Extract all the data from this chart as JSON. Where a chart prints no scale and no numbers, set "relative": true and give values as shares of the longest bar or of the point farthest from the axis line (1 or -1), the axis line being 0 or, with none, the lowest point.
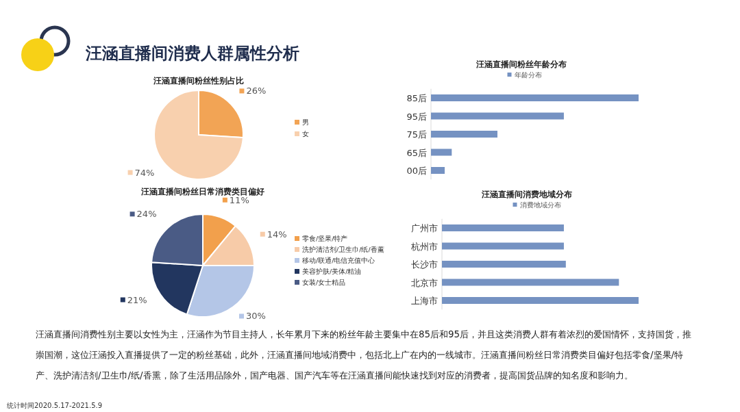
{
  "chart_data": [
    {
      "type": "other",
      "title": "汪涵直播间消费人群属性分析",
      "annotations": [
        "汪涵直播间消费性别主要以女性为主，汪涵作为节目主持人，长年累月下来的粉丝年龄主要集中在85后和95后，并且这类消费人群有着浓烈的爱国情怀，支持国货，推崇国潮，这位汪涵投入直播提供了一定的粉丝基础，此外，汪涵直播间地域消费中，包括北上广在内的一线城市。汪涵直播间粉丝日常消费类目偏好包括零食/坚果/特产、洗护清洁剂/卫生巾/纸/香熏，除了生活用品除外，国产电器、国产汽车等在汪涵直播间能快速找到对应的消费者，提高国货品牌的知名度和影响力。",
        "统计时间2020.5.17-2021.5.9"
      ]
    },
    {
      "type": "pie",
      "title": "汪涵直播间粉丝性别占比",
      "categories": [
        "男",
        "女"
      ],
      "values": [
        26,
        74
      ],
      "value_labels": [
        "26%",
        "74%"
      ],
      "colors": [
        "#f2a455",
        "#f8d0ae"
      ],
      "legend": "right"
    },
    {
      "type": "pie",
      "title": "汪涵直播间粉丝日常消费类目偏好",
      "categories": [
        "零食/坚果/特产",
        "洗护清洁剂/卫生巾/纸/香薰",
        "移动/联通/电信充值中心",
        "美容护肤/美体/精油",
        "女装/女士精品"
      ],
      "values": [
        11,
        14,
        30,
        21,
        24
      ],
      "value_labels": [
        "11%",
        "14%",
        "30%",
        "21%",
        "24%"
      ],
      "colors": [
        "#f2a04c",
        "#f7cba8",
        "#b4c6e7",
        "#22365f",
        "#4a5b85"
      ],
      "legend": "right"
    },
    {
      "type": "bar",
      "orientation": "horizontal",
      "relative": true,
      "title": "汪涵直播间粉丝年龄分布",
      "legend": "top",
      "categories": [
        "85后",
        "95后",
        "75后",
        "65后",
        "00后"
      ],
      "series": [
        {
          "name": "年龄分布",
          "color": "#7592c2",
          "values": [
            1,
            0.64,
            0.32,
            0.1,
            0.066
          ]
        }
      ]
    },
    {
      "type": "bar",
      "orientation": "horizontal",
      "relative": true,
      "title": "汪涵直播间消费地域分布",
      "legend": "top",
      "categories": [
        "广州市",
        "杭州市",
        "长沙市",
        "北京市",
        "上海市"
      ],
      "series": [
        {
          "name": "消费地域分布",
          "color": "#7592c2",
          "values": [
            0.62,
            0.62,
            0.63,
            0.9,
            1
          ]
        }
      ]
    }
  ]
}
